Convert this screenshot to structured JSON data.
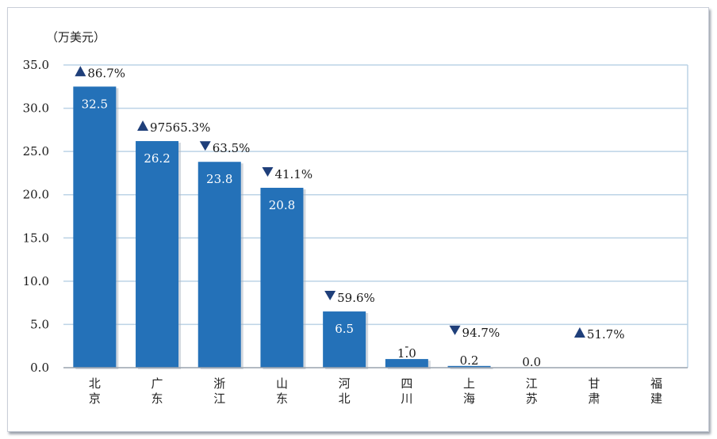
{
  "chart_data": {
    "type": "bar",
    "unit_label": "（万美元）",
    "ylim": [
      0,
      35
    ],
    "yticks": [
      "0.0",
      "5.0",
      "10.0",
      "15.0",
      "20.0",
      "25.0",
      "30.0",
      "35.0"
    ],
    "grid": true,
    "categories": [
      "北京",
      "广东",
      "浙江",
      "山东",
      "河北",
      "四川",
      "上海",
      "江苏",
      "甘肃",
      "福建"
    ],
    "values": [
      32.5,
      26.2,
      23.8,
      20.8,
      6.5,
      1.0,
      0.2,
      0.0,
      0.0,
      0.0
    ],
    "value_labels": [
      "32.5",
      "26.2",
      "23.8",
      "20.8",
      "6.5",
      "1.0",
      "0.2",
      "0.0",
      "",
      ""
    ],
    "changes": [
      {
        "dir": "up",
        "text": "86.7%"
      },
      {
        "dir": "up",
        "text": "97565.3%"
      },
      {
        "dir": "down",
        "text": "63.5%"
      },
      {
        "dir": "down",
        "text": "41.1%"
      },
      {
        "dir": "down",
        "text": "59.6%"
      },
      {
        "dir": "none",
        "text": "-"
      },
      {
        "dir": "down",
        "text": "94.7%"
      },
      {
        "dir": "none",
        "text": ""
      },
      {
        "dir": "up",
        "text": "51.7%"
      },
      {
        "dir": "none",
        "text": ""
      }
    ],
    "colors": {
      "bar": "#2471b8",
      "grid": "#bcd3e6",
      "axis": "#9aa3ad",
      "marker": "#1f3f7a"
    }
  }
}
